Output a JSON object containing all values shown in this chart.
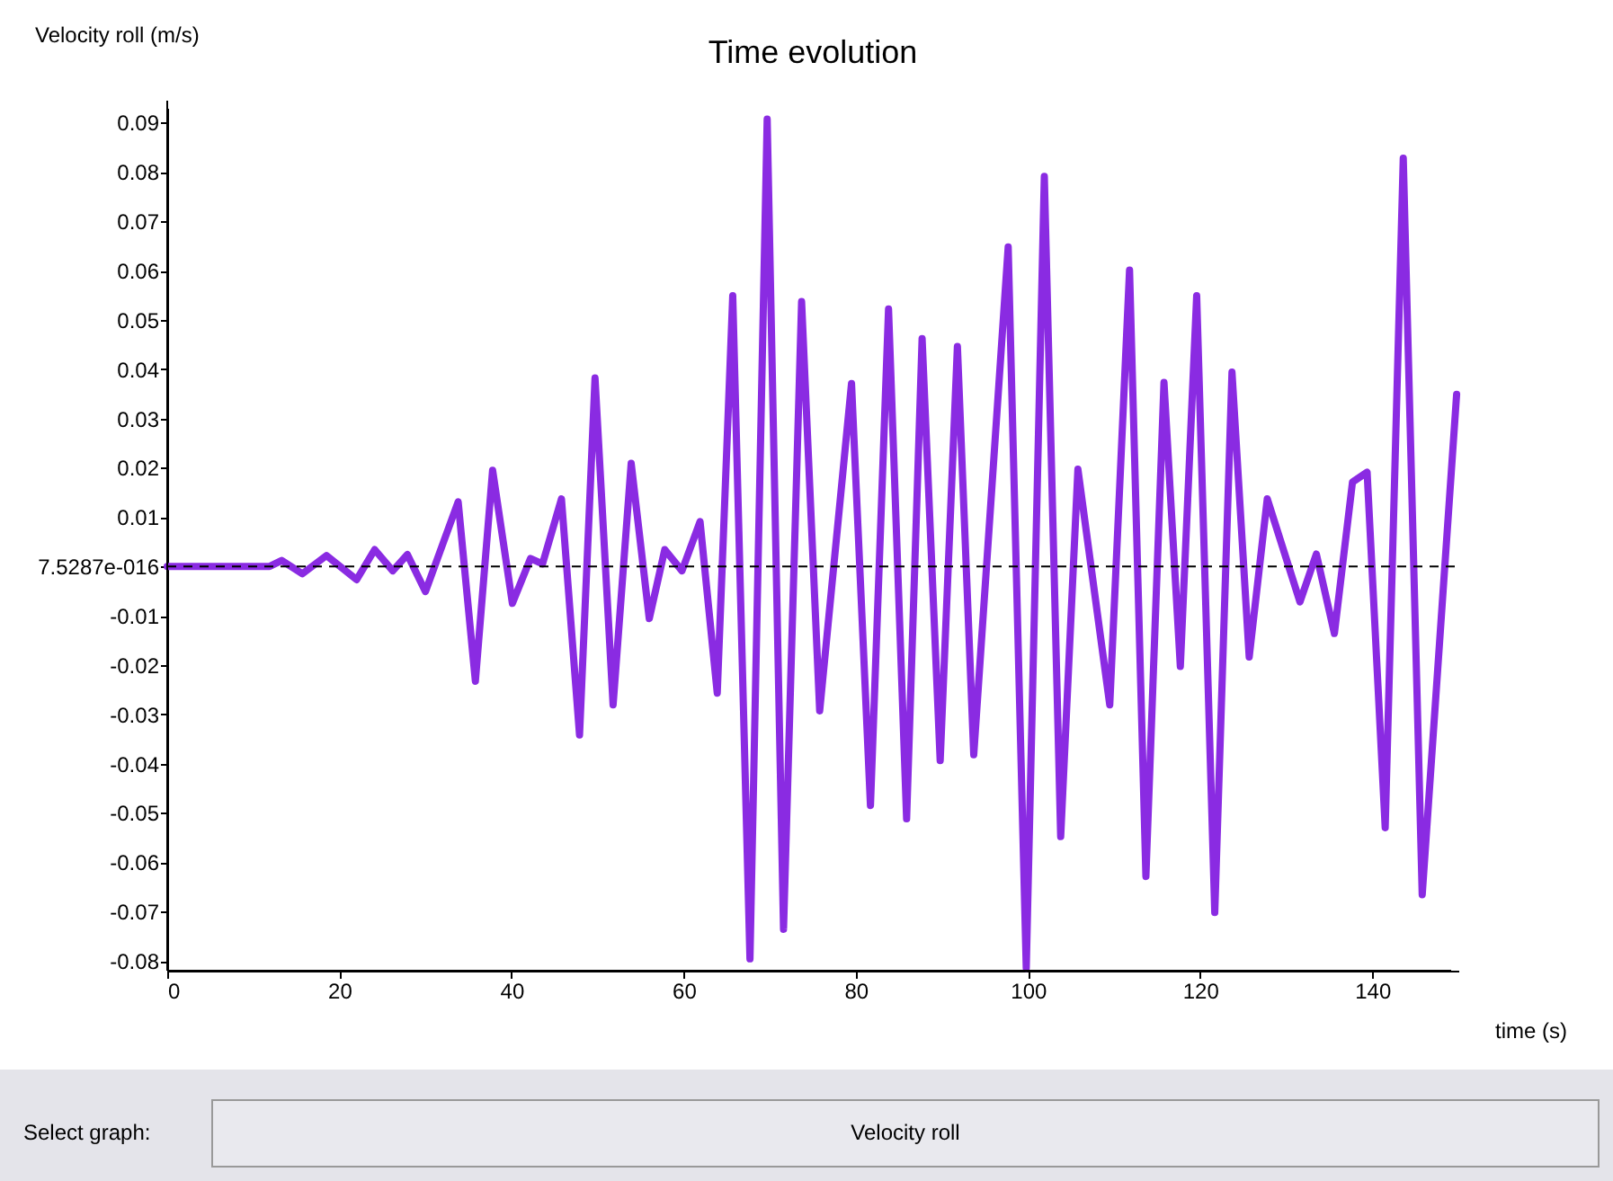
{
  "chart_data": {
    "type": "line",
    "title": "Time evolution",
    "xlabel": "time (s)",
    "ylabel": "Velocity roll (m/s)",
    "x": [
      0,
      11.9,
      13.3,
      15.7,
      18.5,
      22.0,
      24.1,
      26.2,
      27.9,
      30.0,
      33.8,
      35.8,
      37.8,
      40.1,
      42.2,
      43.6,
      45.8,
      47.9,
      49.7,
      51.8,
      53.9,
      56.0,
      57.8,
      59.8,
      61.9,
      63.9,
      65.7,
      67.7,
      69.7,
      71.6,
      73.7,
      75.8,
      79.5,
      81.7,
      83.8,
      85.9,
      87.7,
      89.8,
      91.8,
      93.7,
      97.7,
      99.8,
      101.9,
      103.8,
      105.8,
      109.5,
      111.8,
      113.7,
      115.8,
      117.7,
      119.6,
      121.7,
      123.7,
      125.7,
      127.8,
      131.6,
      133.5,
      135.6,
      137.7,
      139.4,
      141.5,
      143.6,
      145.8,
      149.8
    ],
    "series": [
      {
        "color": "#8a2be2",
        "values": [
          0,
          0,
          0.0012,
          -0.0015,
          0.0022,
          -0.0027,
          0.0034,
          -0.0009,
          0.0024,
          -0.0051,
          0.0131,
          -0.0233,
          0.0195,
          -0.0075,
          0.0016,
          0.0005,
          0.0137,
          -0.0342,
          0.0382,
          -0.0281,
          0.0209,
          -0.0106,
          0.0034,
          -0.0009,
          0.0091,
          -0.0257,
          0.0549,
          -0.0796,
          0.0907,
          -0.0736,
          0.0537,
          -0.0293,
          0.0371,
          -0.0485,
          0.0522,
          -0.0512,
          0.0462,
          -0.0394,
          0.0446,
          -0.0382,
          0.0648,
          -0.0815,
          0.0791,
          -0.0548,
          0.0197,
          -0.0281,
          0.0601,
          -0.0629,
          0.0373,
          -0.0203,
          0.0549,
          -0.0702,
          0.0394,
          -0.0184,
          0.0137,
          -0.0072,
          0.0025,
          -0.0136,
          0.0171,
          0.0191,
          -0.053,
          0.0828,
          -0.0666,
          0.0349
        ]
      }
    ],
    "xlim": [
      0,
      150
    ],
    "xticks": [
      0,
      20,
      40,
      60,
      80,
      100,
      120,
      140
    ],
    "ylim": [
      -0.082,
      0.093
    ],
    "yticks": [
      -0.08,
      -0.07,
      -0.06,
      -0.05,
      -0.04,
      -0.03,
      -0.02,
      -0.01,
      {
        "value": 0,
        "label": "7.5287e-016"
      },
      0.01,
      0.02,
      0.03,
      0.04,
      0.05,
      0.06,
      0.07,
      0.08,
      0.09
    ],
    "ref_lines": [
      {
        "axis": "y",
        "value": 0,
        "color": "#000000",
        "line_style": "dashed"
      }
    ],
    "grid": false,
    "legend": false,
    "marker": "none",
    "line_style": "solid",
    "annotations": [
      "Select graph:",
      "Velocity roll"
    ]
  }
}
